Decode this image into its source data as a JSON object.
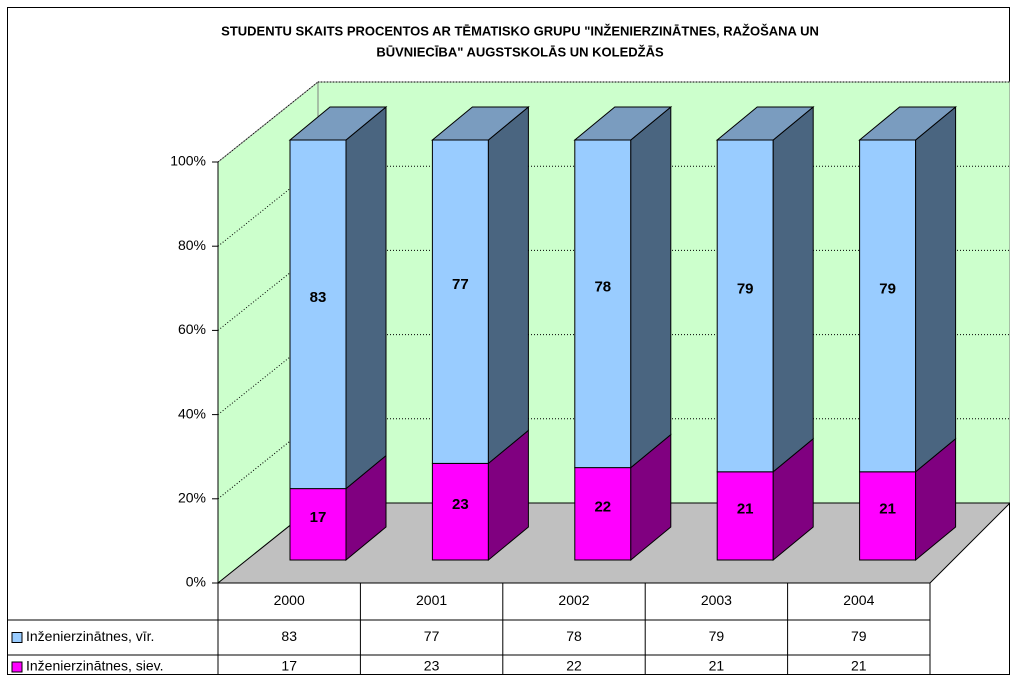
{
  "chart_data": {
    "type": "bar3d_stacked",
    "title": [
      "STUDENTU SKAITS PROCENTOS AR TĒMATISKO GRUPU \"INŽENIERZINĀTNES, RAŽOŠANA UN",
      "BŪVNIECĪBA\" AUGSTSKOLĀS UN KOLEDŽĀS"
    ],
    "categories": [
      "2000",
      "2001",
      "2002",
      "2003",
      "2004"
    ],
    "series": [
      {
        "name": "Inženierzinātnes, siev.",
        "color": "#ff00ff",
        "values": [
          17,
          23,
          22,
          21,
          21
        ]
      },
      {
        "name": "Inženierzinātnes, vīr.",
        "color": "#99ccff",
        "values": [
          83,
          77,
          78,
          79,
          79
        ]
      }
    ],
    "ylim": [
      0,
      100
    ],
    "yticks": [
      {
        "value": 0,
        "label": "0%"
      },
      {
        "value": 20,
        "label": "20%"
      },
      {
        "value": 40,
        "label": "40%"
      },
      {
        "value": 60,
        "label": "60%"
      },
      {
        "value": 80,
        "label": "80%"
      },
      {
        "value": 100,
        "label": "100%"
      }
    ],
    "grid": true
  }
}
